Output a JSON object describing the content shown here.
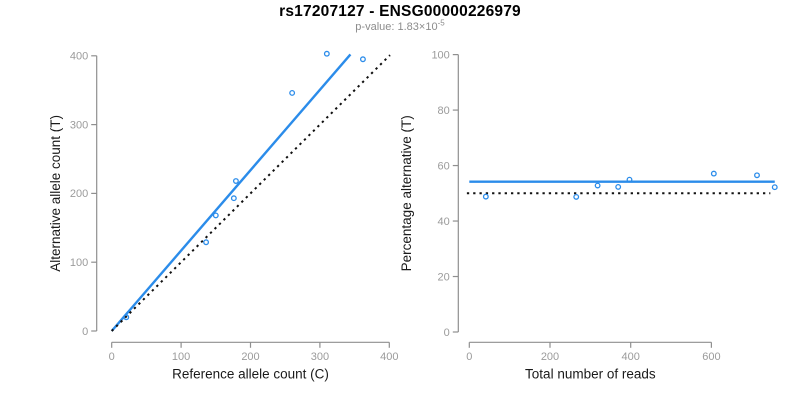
{
  "header": {
    "title": "rs17207127 - ENSG00000226979",
    "subtitle_prefix": "p-value: 1.83×10",
    "subtitle_exponent": "-5"
  },
  "colors": {
    "accent_blue": "#2b8cea",
    "dotted_black": "#111111",
    "axis_gray": "#8f8f8f",
    "tick_label_gray": "#9b9b9b",
    "axis_title_black": "#1a1a1a",
    "title_black": "#000000",
    "subtitle_gray": "#8c8c8c"
  },
  "chart_data": [
    {
      "type": "scatter",
      "name": "allele-counts",
      "xlabel": "Reference allele count (C)",
      "ylabel": "Alternative allele count (T)",
      "xlim": [
        0,
        400
      ],
      "ylim": [
        0,
        400
      ],
      "xticks": [
        0,
        100,
        200,
        300,
        400
      ],
      "yticks": [
        0,
        100,
        200,
        300,
        400
      ],
      "grid": false,
      "legend": false,
      "points": [
        [
          21,
          20
        ],
        [
          136,
          129
        ],
        [
          150,
          168
        ],
        [
          176,
          193
        ],
        [
          179,
          218
        ],
        [
          260,
          346
        ],
        [
          310,
          403
        ],
        [
          362,
          395
        ]
      ],
      "lines": [
        {
          "name": "fitted",
          "style": "solid",
          "x1": 0,
          "y1": 0,
          "x2": 344,
          "y2": 402
        },
        {
          "name": "identity",
          "style": "dotted",
          "x1": 0,
          "y1": 0,
          "x2": 401,
          "y2": 401
        }
      ]
    },
    {
      "type": "scatter",
      "name": "percentage-alternative",
      "xlabel": "Total number of reads",
      "ylabel": "Percentage alternative (T)",
      "xlim": [
        0,
        600
      ],
      "ylim": [
        0,
        100
      ],
      "xticks": [
        0,
        200,
        400,
        600
      ],
      "yticks": [
        0,
        20,
        40,
        60,
        80,
        100
      ],
      "grid": false,
      "legend": false,
      "points": [
        [
          41,
          48.8
        ],
        [
          265,
          48.7
        ],
        [
          318,
          52.8
        ],
        [
          369,
          52.3
        ],
        [
          397,
          54.9
        ],
        [
          606,
          57.1
        ],
        [
          713,
          56.5
        ],
        [
          757,
          52.2
        ]
      ],
      "lines": [
        {
          "name": "mean-percentage",
          "style": "solid",
          "x1": 0,
          "y1": 54.2,
          "x2": 757,
          "y2": 54.2
        },
        {
          "name": "expected-50",
          "style": "dotted",
          "x1": -6,
          "y1": 50,
          "x2": 746,
          "y2": 50
        }
      ]
    }
  ]
}
